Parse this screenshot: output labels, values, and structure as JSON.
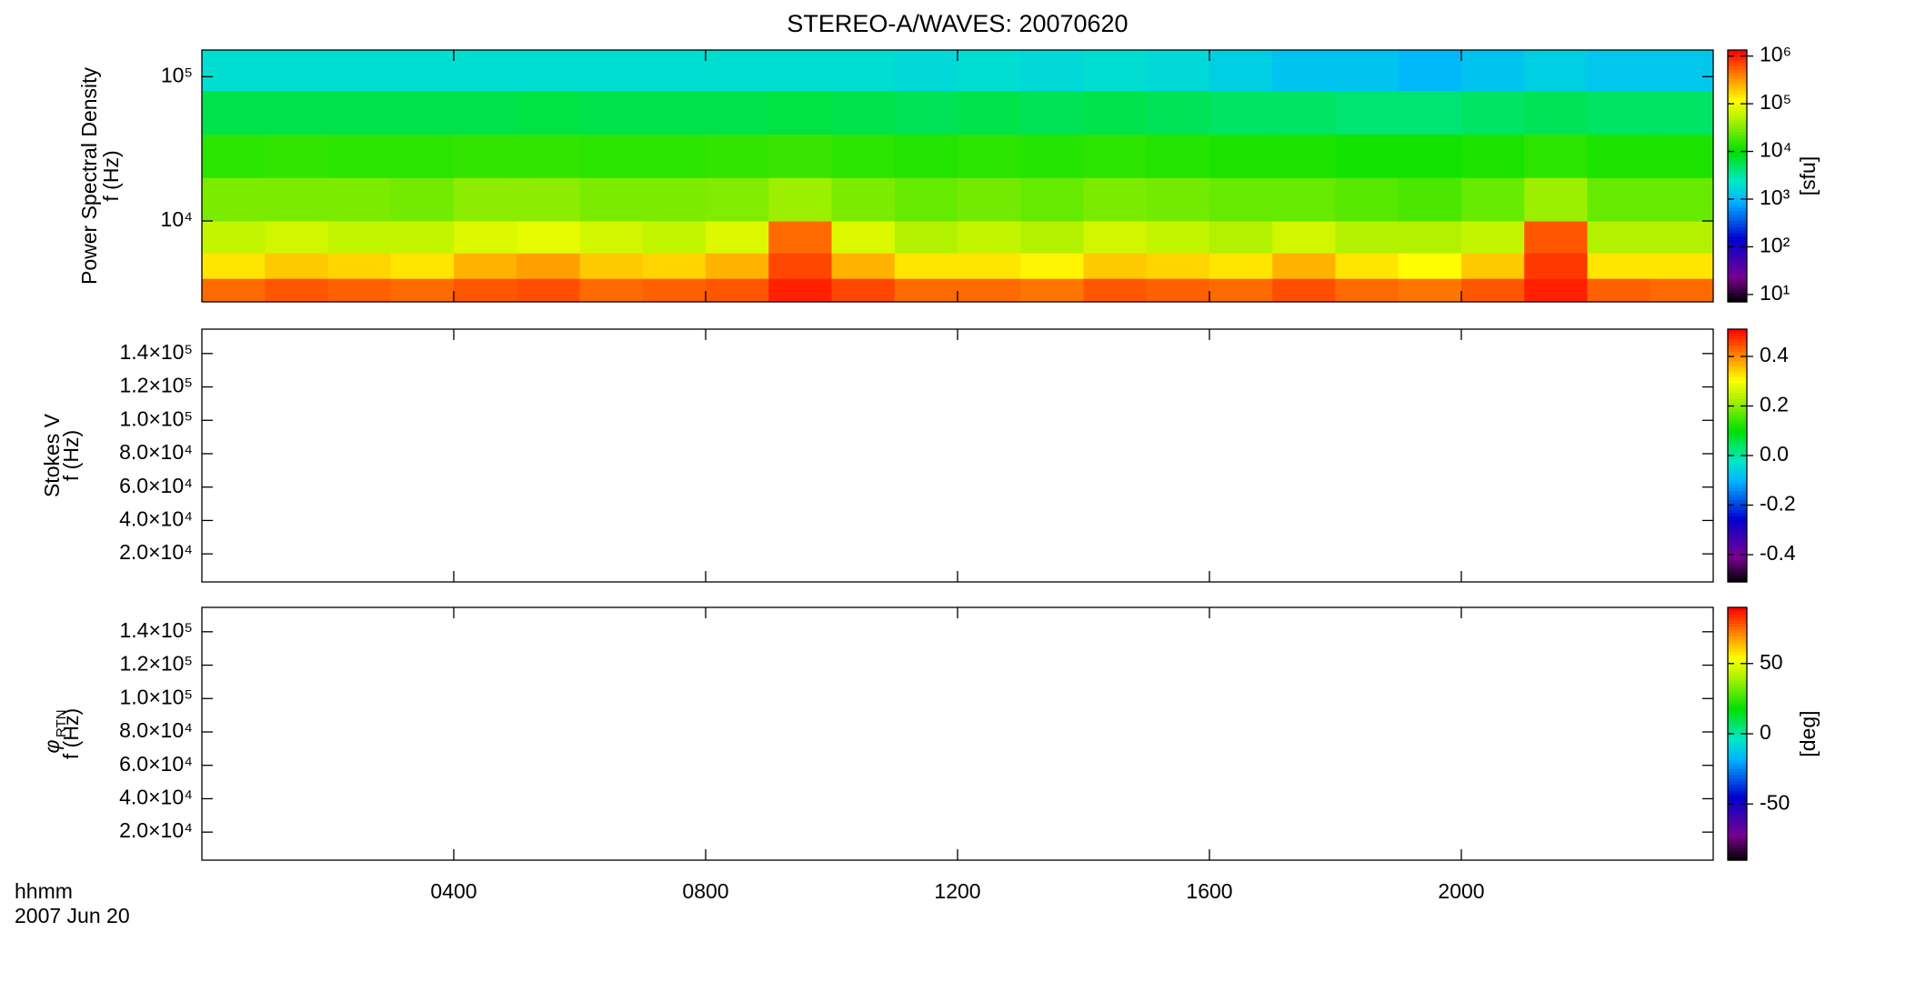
{
  "title": "STEREO-A/WAVES: 20070620",
  "time_label": "hhmm",
  "date_label": "2007 Jun 20",
  "xlim": [
    0,
    24
  ],
  "xticks": [
    {
      "value": 4,
      "label": "0400"
    },
    {
      "value": 8,
      "label": "0800"
    },
    {
      "value": 12,
      "label": "1200"
    },
    {
      "value": 16,
      "label": "1600"
    },
    {
      "value": 20,
      "label": "2000"
    }
  ],
  "chart_data": [
    {
      "type": "heatmap",
      "ylabel": "Power Spectral Density",
      "ylabel_unit": "f (Hz)",
      "ylog": true,
      "ylim": [
        2750,
        153000
      ],
      "yticks": [
        {
          "value": 10000,
          "label": "10⁴"
        },
        {
          "value": 100000,
          "label": "10⁵"
        }
      ],
      "colormap": "rainbow",
      "x_bins": [
        0,
        1,
        2,
        3,
        4,
        5,
        6,
        7,
        8,
        9,
        10,
        11,
        12,
        13,
        14,
        15,
        16,
        17,
        18,
        19,
        20,
        21,
        22,
        23,
        24
      ],
      "y_bins": [
        2750,
        4000,
        6000,
        10000,
        20000,
        40000,
        80000,
        153000
      ],
      "z": [
        [
          500000,
          600000,
          550000,
          500000,
          600000,
          650000,
          500000,
          550000,
          600000,
          1000000,
          700000,
          500000,
          500000,
          450000,
          600000,
          550000,
          500000,
          650000,
          500000,
          450000,
          600000,
          1000000,
          550000,
          500000
        ],
        [
          150000,
          200000,
          180000,
          150000,
          250000,
          300000,
          200000,
          180000,
          250000,
          700000,
          250000,
          150000,
          150000,
          130000,
          200000,
          180000,
          150000,
          250000,
          150000,
          120000,
          200000,
          800000,
          150000,
          150000
        ],
        [
          60000,
          70000,
          60000,
          60000,
          80000,
          90000,
          70000,
          60000,
          80000,
          500000,
          80000,
          50000,
          60000,
          50000,
          70000,
          60000,
          50000,
          70000,
          50000,
          50000,
          60000,
          600000,
          50000,
          50000
        ],
        [
          30000,
          30000,
          30000,
          28000,
          35000,
          35000,
          30000,
          30000,
          32000,
          40000,
          30000,
          25000,
          28000,
          25000,
          30000,
          28000,
          25000,
          25000,
          22000,
          20000,
          25000,
          40000,
          25000,
          25000
        ],
        [
          15000,
          16000,
          15000,
          15000,
          16000,
          16000,
          15000,
          15000,
          16000,
          17000,
          15000,
          14000,
          15000,
          14000,
          15000,
          14000,
          13000,
          13000,
          12000,
          12000,
          13000,
          15000,
          13000,
          13000
        ],
        [
          6000,
          6000,
          6000,
          6000,
          6000,
          6500,
          6000,
          6000,
          6000,
          6500,
          6000,
          5500,
          6000,
          5500,
          6000,
          5500,
          5000,
          5000,
          4500,
          4500,
          5000,
          5500,
          5000,
          5000
        ],
        [
          2000,
          2000,
          2000,
          2000,
          2000,
          2000,
          2000,
          2000,
          2000,
          2000,
          2000,
          1800,
          2000,
          1800,
          2000,
          1800,
          1500,
          1200,
          1200,
          1000,
          1200,
          1500,
          1300,
          1300
        ]
      ],
      "colorbar": {
        "label": "[sfu]",
        "log": true,
        "zlim": [
          7,
          1340000
        ],
        "ticks": [
          {
            "value": 10,
            "label": "10¹"
          },
          {
            "value": 100,
            "label": "10²"
          },
          {
            "value": 1000,
            "label": "10³"
          },
          {
            "value": 10000,
            "label": "10⁴"
          },
          {
            "value": 100000,
            "label": "10⁵"
          },
          {
            "value": 1000000,
            "label": "10⁶"
          }
        ]
      }
    },
    {
      "type": "heatmap",
      "ylabel": "Stokes V",
      "ylabel_unit": "f (Hz)",
      "ylog": false,
      "ylim": [
        3200,
        154600
      ],
      "yticks": [
        {
          "value": 20000,
          "label": "2.0×10⁴"
        },
        {
          "value": 40000,
          "label": "4.0×10⁴"
        },
        {
          "value": 60000,
          "label": "6.0×10⁴"
        },
        {
          "value": 80000,
          "label": "8.0×10⁴"
        },
        {
          "value": 100000,
          "label": "1.0×10⁵"
        },
        {
          "value": 120000,
          "label": "1.2×10⁵"
        },
        {
          "value": 140000,
          "label": "1.4×10⁵"
        }
      ],
      "colormap": "rainbow",
      "colorbar": {
        "log": false,
        "zlim": [
          -0.51,
          0.51
        ],
        "ticks": [
          -0.4,
          -0.2,
          {
            "value": 0,
            "label": "0.0"
          },
          0.2,
          0.4
        ]
      }
    },
    {
      "type": "heatmap",
      "ylabel": "φ",
      "ylabel_sub": "RTN",
      "ylabel_unit": "f (Hz)",
      "ylog": false,
      "ylim": [
        3200,
        154600
      ],
      "yticks": [
        {
          "value": 20000,
          "label": "2.0×10⁴"
        },
        {
          "value": 40000,
          "label": "4.0×10⁴"
        },
        {
          "value": 60000,
          "label": "6.0×10⁴"
        },
        {
          "value": 80000,
          "label": "8.0×10⁴"
        },
        {
          "value": 100000,
          "label": "1.0×10⁵"
        },
        {
          "value": 120000,
          "label": "1.2×10⁵"
        },
        {
          "value": 140000,
          "label": "1.4×10⁵"
        }
      ],
      "colormap": "rainbow",
      "colorbar": {
        "label": "[deg]",
        "log": false,
        "zlim": [
          -90,
          90
        ],
        "ticks": [
          -50,
          0,
          50
        ]
      }
    }
  ]
}
